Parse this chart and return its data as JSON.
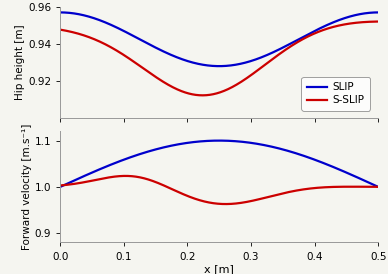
{
  "x_min": 0.0,
  "x_max": 0.5,
  "x_ticks": [
    0,
    0.1,
    0.2,
    0.3,
    0.4,
    0.5
  ],
  "hip_ylim": [
    0.9,
    0.96
  ],
  "hip_yticks": [
    0.92,
    0.94,
    0.96
  ],
  "hip_ylabel": "Hip height [m]",
  "vel_ylim": [
    0.88,
    1.12
  ],
  "vel_yticks": [
    0.9,
    1.0,
    1.1
  ],
  "vel_ylabel": "Forward velocity [m.s⁻¹]",
  "xlabel": "x [m]",
  "slip_color": "#0000cc",
  "sslip_color": "#cc0000",
  "line_width": 1.6,
  "legend_labels": [
    "SLIP",
    "S-SLIP"
  ],
  "background": "#f5f5f0"
}
